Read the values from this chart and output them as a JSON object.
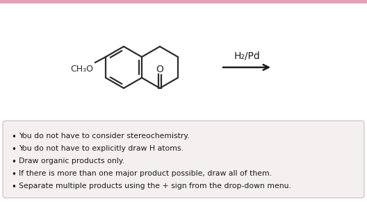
{
  "bg_color": "#ffffff",
  "top_bar_color": "#e8a0b4",
  "box_bg_color": "#f5f0f0",
  "box_edge_color": "#ccbbbb",
  "text_color": "#1a1a1a",
  "reaction_label": "H₂/Pd",
  "bullet_points": [
    "You do not have to consider stereochemistry.",
    "You do not have to explicitly draw H atoms.",
    "Draw organic products only.",
    "If there is more than one major product possible, draw all of them.",
    "Separate multiple products using the + sign from the drop-down menu."
  ],
  "molecule_color": "#2b2b2b",
  "arrow_color": "#1a1a1a",
  "fig_width": 5.28,
  "fig_height": 2.91,
  "dpi": 100
}
